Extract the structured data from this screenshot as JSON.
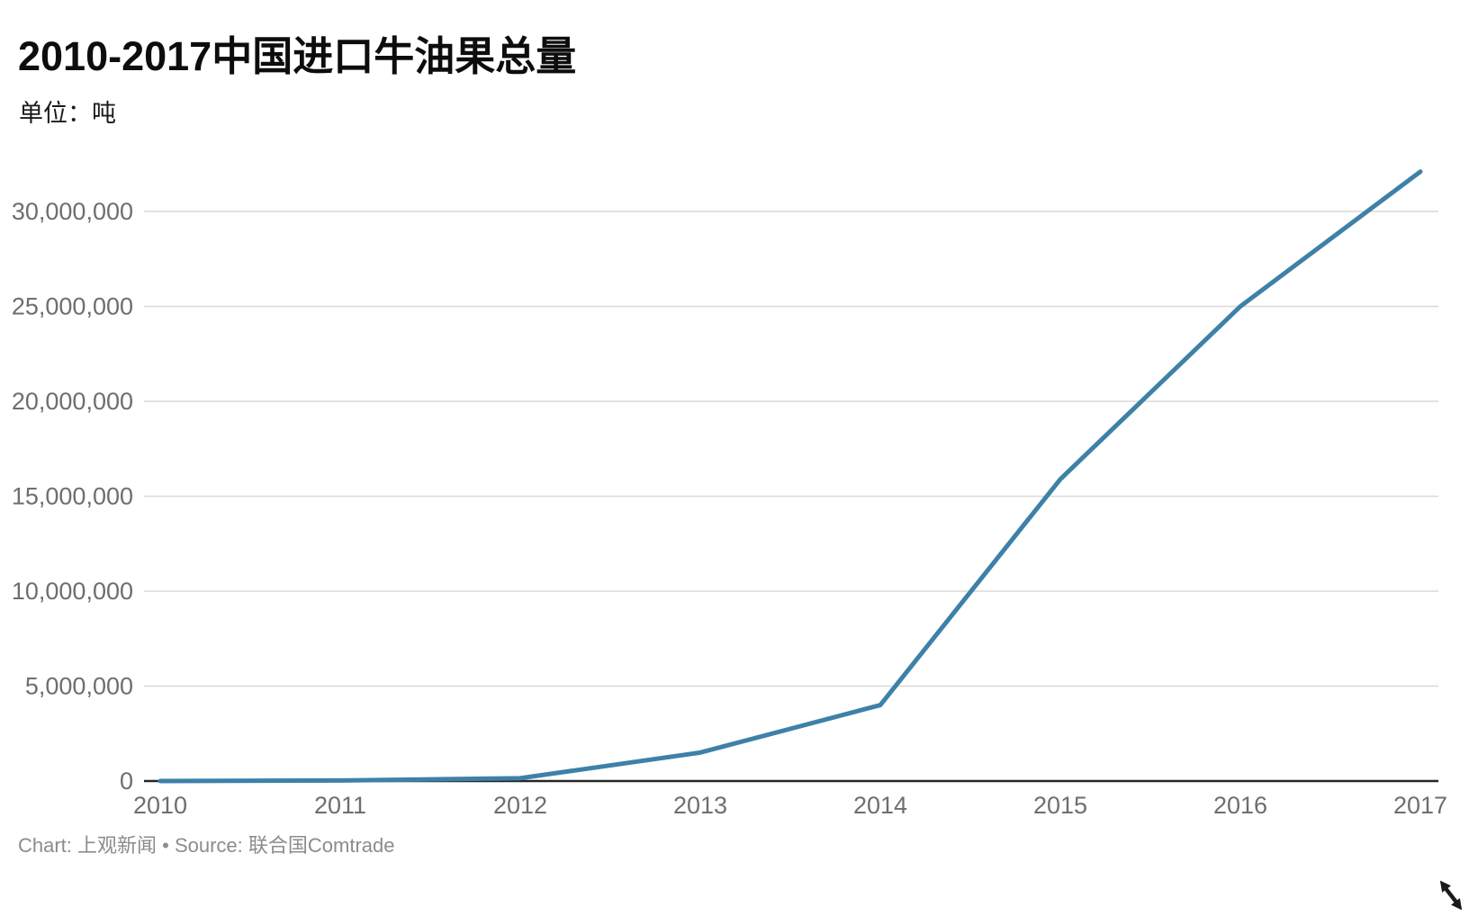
{
  "header": {
    "title": "2010-2017中国进口牛油果总量",
    "unit": "单位：吨"
  },
  "footer": {
    "text": "Chart: 上观新闻 • Source: 联合国Comtrade"
  },
  "colors": {
    "line": "#3d81a8",
    "grid": "#d9d9d9",
    "axis": "#262626",
    "tick_label": "#6e6e6e",
    "footer_text": "#8c8c8c",
    "cursor": "#1a1a1a"
  },
  "chart_data": {
    "type": "line",
    "title": "2010-2017中国进口牛油果总量",
    "unit_label": "单位：吨",
    "x": [
      "2010",
      "2011",
      "2012",
      "2013",
      "2014",
      "2015",
      "2016",
      "2017"
    ],
    "series": [
      {
        "name": "中国进口牛油果总量",
        "values": [
          0,
          30000,
          150000,
          1500000,
          4000000,
          15900000,
          25000000,
          32100000
        ]
      }
    ],
    "ylabel": "吨",
    "xlabel": "",
    "ylim": [
      0,
      32500000
    ],
    "yticks": [
      0,
      5000000,
      10000000,
      15000000,
      20000000,
      25000000,
      30000000
    ],
    "ytick_format": "thousands-comma",
    "grid": "horizontal",
    "legend": "none",
    "source": "联合国Comtrade",
    "chart_credit": "上观新闻"
  }
}
